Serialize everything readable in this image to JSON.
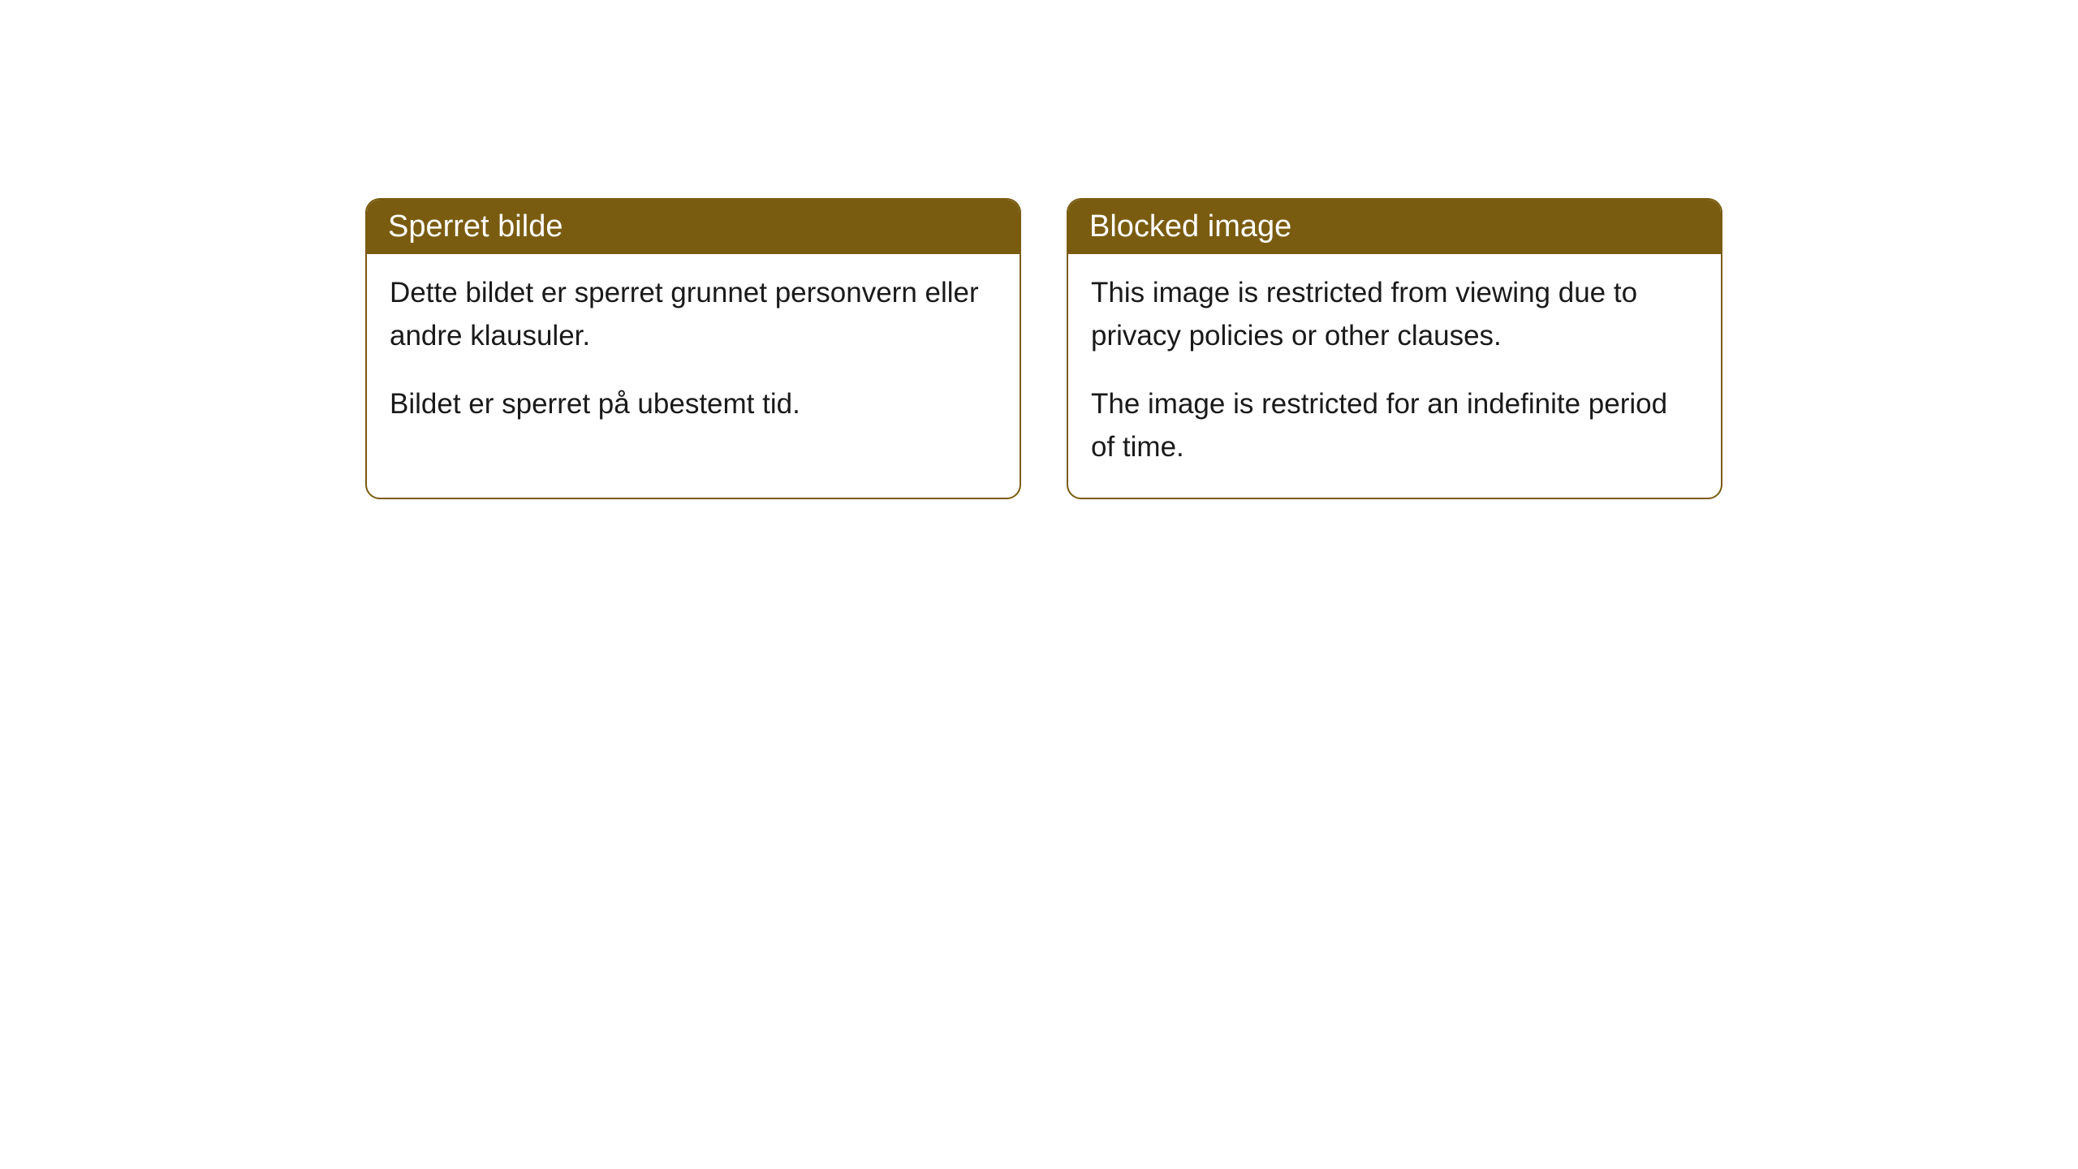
{
  "cards": [
    {
      "title": "Sperret bilde",
      "paragraph1": "Dette bildet er sperret grunnet personvern eller andre klausuler.",
      "paragraph2": "Bildet er sperret på ubestemt tid."
    },
    {
      "title": "Blocked image",
      "paragraph1": "This image is restricted from viewing due to privacy policies or other clauses.",
      "paragraph2": "The image is restricted for an indefinite period of time."
    }
  ],
  "styling": {
    "header_background": "#7a5c11",
    "header_text_color": "#ffffff",
    "border_color": "#7a5c11",
    "body_background": "#ffffff",
    "body_text_color": "#1a1a1a",
    "border_radius": 18,
    "title_fontsize": 38,
    "body_fontsize": 35
  }
}
